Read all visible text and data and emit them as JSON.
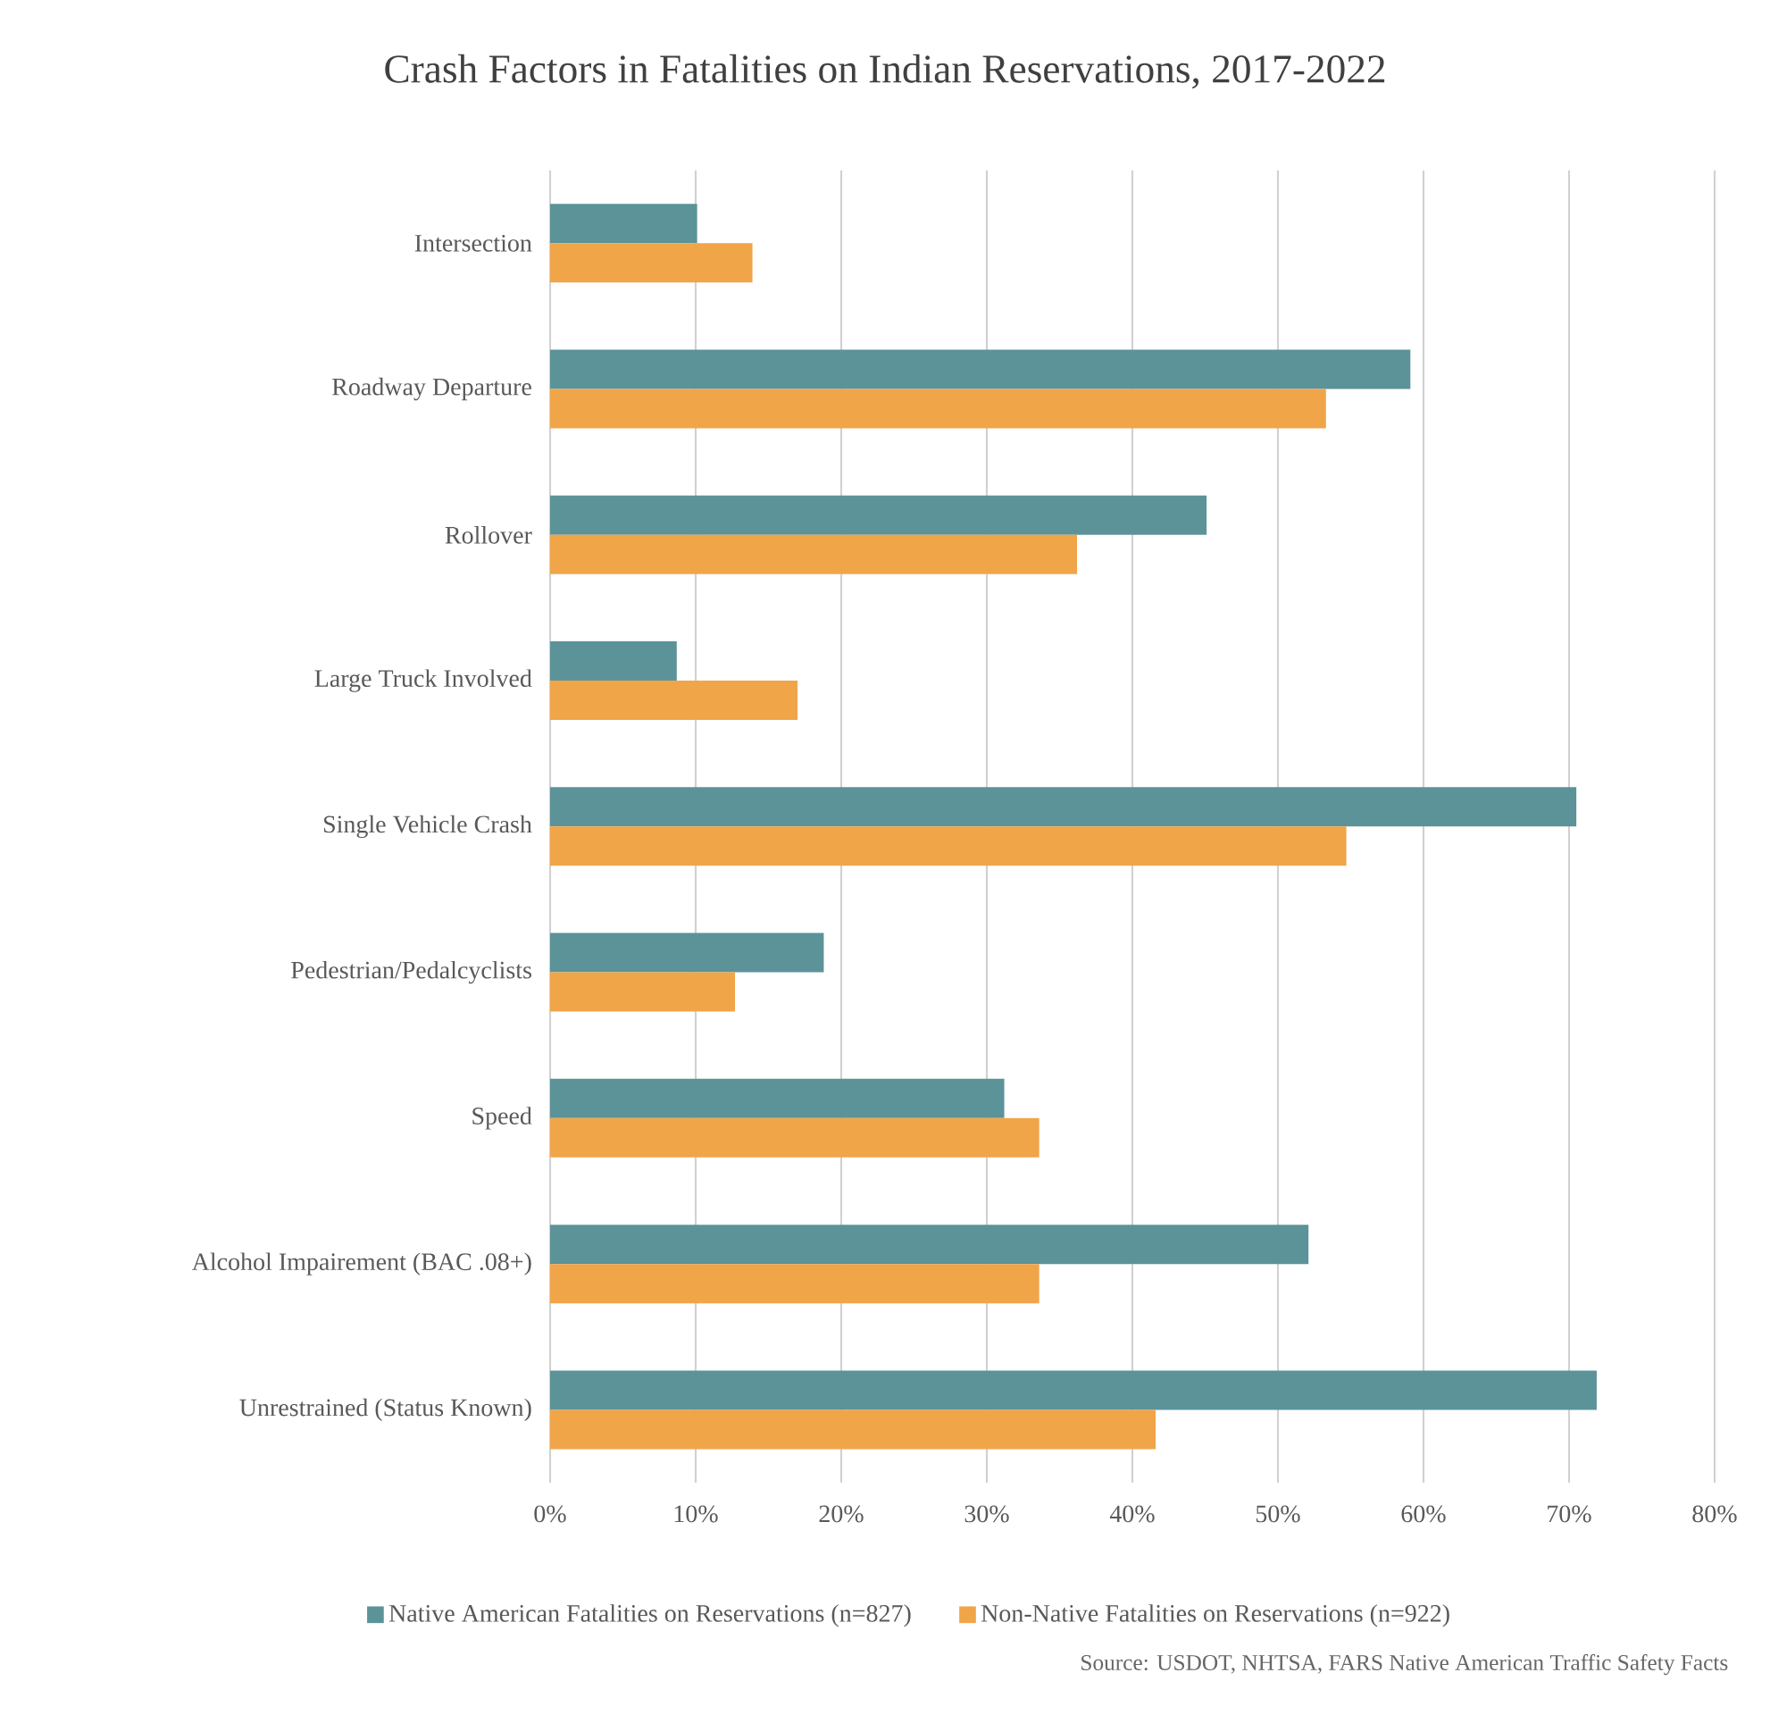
{
  "chart_data": {
    "type": "bar",
    "orientation": "horizontal",
    "title": "Crash Factors in Fatalities on Indian Reservations, 2017-2022",
    "categories": [
      "Intersection",
      "Roadway Departure",
      "Rollover",
      "Large Truck Involved",
      "Single Vehicle Crash",
      "Pedestrian/Pedalcyclists",
      "Speed",
      "Alcohol Impairement (BAC .08+)",
      "Unrestrained (Status Known)"
    ],
    "series": [
      {
        "name": "Native American Fatalities on Reservations (n=827)",
        "color": "#5b9399",
        "values": [
          10.1,
          59.1,
          45.1,
          8.7,
          70.5,
          18.8,
          31.2,
          52.1,
          71.9
        ]
      },
      {
        "name": "Non-Native Fatalities on Reservations (n=922)",
        "color": "#f0a549",
        "values": [
          13.9,
          53.3,
          36.2,
          17.0,
          54.7,
          12.7,
          33.6,
          33.6,
          41.6
        ]
      }
    ],
    "xlim": [
      0,
      80
    ],
    "xticks": [
      {
        "value": 0,
        "label": "0%"
      },
      {
        "value": 10,
        "label": "10%"
      },
      {
        "value": 20,
        "label": "20%"
      },
      {
        "value": 30,
        "label": "30%"
      },
      {
        "value": 40,
        "label": "40%"
      },
      {
        "value": 50,
        "label": "50%"
      },
      {
        "value": 60,
        "label": "60%"
      },
      {
        "value": 70,
        "label": "70%"
      },
      {
        "value": 80,
        "label": "80%"
      }
    ],
    "grid": "x",
    "legend": "bottom",
    "annotations": [
      "Source: USDOT, NHTSA, FARS Native American Traffic Safety Facts"
    ]
  }
}
